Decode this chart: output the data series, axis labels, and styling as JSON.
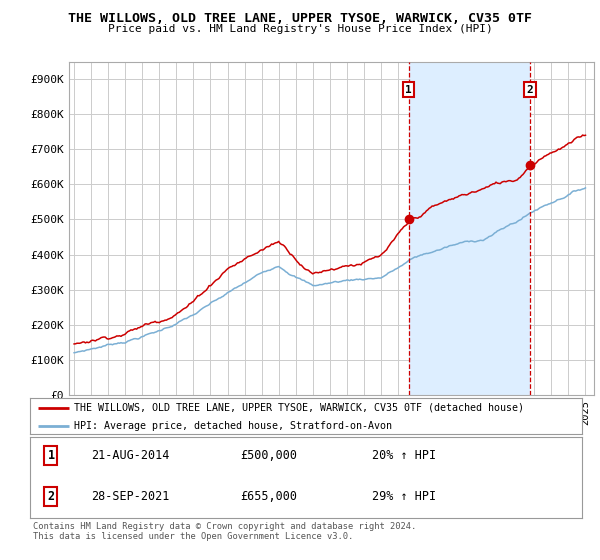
{
  "title_line1": "THE WILLOWS, OLD TREE LANE, UPPER TYSOE, WARWICK, CV35 0TF",
  "title_line2": "Price paid vs. HM Land Registry's House Price Index (HPI)",
  "ylabel_ticks": [
    "£0",
    "£100K",
    "£200K",
    "£300K",
    "£400K",
    "£500K",
    "£600K",
    "£700K",
    "£800K",
    "£900K"
  ],
  "ytick_values": [
    0,
    100000,
    200000,
    300000,
    400000,
    500000,
    600000,
    700000,
    800000,
    900000
  ],
  "ylim": [
    0,
    950000
  ],
  "xlim_start": 1994.7,
  "xlim_end": 2025.5,
  "purchase1_x": 2014.63,
  "purchase1_y": 500000,
  "purchase1_label": "1",
  "purchase2_x": 2021.75,
  "purchase2_y": 655000,
  "purchase2_label": "2",
  "red_color": "#cc0000",
  "blue_color": "#7bafd4",
  "shade_color": "#ddeeff",
  "legend_label_red": "THE WILLOWS, OLD TREE LANE, UPPER TYSOE, WARWICK, CV35 0TF (detached house)",
  "legend_label_blue": "HPI: Average price, detached house, Stratford-on-Avon",
  "annotation1_date": "21-AUG-2014",
  "annotation1_price": "£500,000",
  "annotation1_hpi": "20% ↑ HPI",
  "annotation2_date": "28-SEP-2021",
  "annotation2_price": "£655,000",
  "annotation2_hpi": "29% ↑ HPI",
  "footer": "Contains HM Land Registry data © Crown copyright and database right 2024.\nThis data is licensed under the Open Government Licence v3.0.",
  "bg_color": "#ffffff",
  "grid_color": "#cccccc"
}
